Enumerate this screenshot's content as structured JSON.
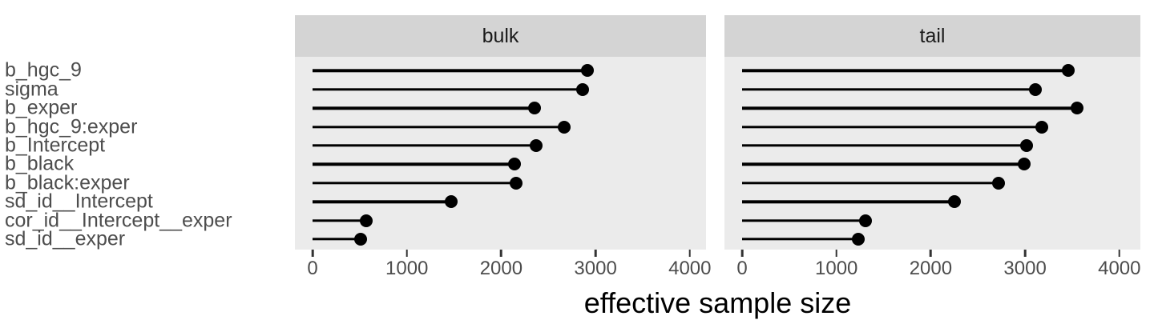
{
  "chart_data": {
    "type": "bar",
    "style": "lollipop",
    "orientation": "horizontal",
    "title": "",
    "xlabel": "effective sample size",
    "ylabel": "",
    "categories": [
      "b_hgc_9",
      "sigma",
      "b_exper",
      "b_hgc_9:exper",
      "b_Intercept",
      "b_black",
      "b_black:exper",
      "sd_id__Intercept",
      "cor_id__Intercept__exper",
      "sd_id__exper"
    ],
    "series": [
      {
        "name": "bulk",
        "values": [
          2910,
          2860,
          2350,
          2670,
          2370,
          2140,
          2160,
          1470,
          570,
          510
        ]
      },
      {
        "name": "tail",
        "values": [
          3460,
          3110,
          3550,
          3180,
          3020,
          2990,
          2720,
          2250,
          1310,
          1230
        ]
      }
    ],
    "x_ticks": [
      0,
      1000,
      2000,
      3000,
      4000
    ],
    "xlim": [
      -190,
      4360
    ],
    "facet_layout": "columns",
    "legend": "none",
    "grid": false,
    "colors": {
      "mark": "#000000",
      "panel_bg": "#EBEBEB",
      "strip_bg": "#D4D4D4",
      "axis_text": "#4D4D4D",
      "strip_text": "#1A1A1A",
      "axis_title_text": "#000000"
    }
  }
}
